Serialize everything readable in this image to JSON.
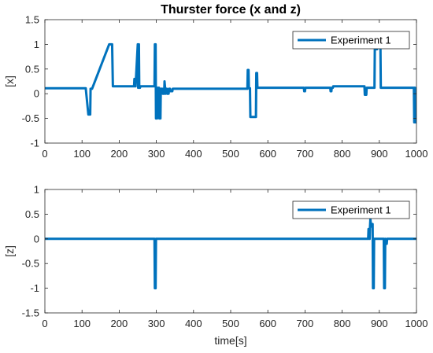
{
  "colors": {
    "series": "#0072BD",
    "axis": "#262626",
    "grid": "#e8e8e8"
  },
  "chart_data": [
    {
      "type": "line",
      "title": "Thurster force (x and z)",
      "xlabel": "",
      "ylabel": "[x]",
      "xlim": [
        0,
        1000
      ],
      "ylim": [
        -1,
        1.5
      ],
      "xticks": [
        0,
        100,
        200,
        300,
        400,
        500,
        600,
        700,
        800,
        900,
        1000
      ],
      "xtick_labels": [
        "0",
        "100",
        "200",
        "300",
        "400",
        "500",
        "600",
        "700",
        "800",
        "900",
        "1000"
      ],
      "yticks": [
        -1,
        -0.5,
        0,
        0.5,
        1,
        1.5
      ],
      "ytick_labels": [
        "-1",
        "-0.5",
        "0",
        "0.5",
        "1",
        "1.5"
      ],
      "legend_position": "top-right",
      "series": [
        {
          "name": "Experiment 1",
          "x": [
            0,
            110,
            117,
            118,
            122,
            123,
            126,
            127,
            172,
            173,
            180,
            181,
            183,
            184,
            240,
            241,
            243,
            244,
            250,
            251,
            253,
            254,
            256,
            257,
            295,
            296,
            298,
            299,
            302,
            303,
            307,
            308,
            311,
            312,
            316,
            317,
            321,
            322,
            325,
            326,
            328,
            329,
            333,
            334,
            337,
            338,
            343,
            344,
            350,
            351,
            545,
            546,
            548,
            549,
            552,
            553,
            568,
            569,
            571,
            572,
            697,
            698,
            700,
            701,
            705,
            706,
            768,
            769,
            771,
            772,
            775,
            776,
            860,
            861,
            865,
            866,
            887,
            888,
            890,
            891,
            894,
            895,
            903,
            904,
            905,
            906,
            920,
            921,
            993,
            994,
            996,
            997,
            1000
          ],
          "y": [
            0.11,
            0.11,
            -0.42,
            -0.42,
            -0.42,
            0.1,
            0.1,
            0.1,
            0.98,
            1.0,
            1.0,
            1.0,
            0.15,
            0.15,
            0.15,
            0.3,
            0.15,
            0.15,
            1.0,
            0.12,
            1.0,
            0.12,
            0.12,
            0.15,
            0.15,
            1.0,
            1.0,
            -0.5,
            -0.5,
            0.12,
            0.12,
            -0.5,
            -0.5,
            0.1,
            0.1,
            0.0,
            0.0,
            0.25,
            0.0,
            0.1,
            0.1,
            0.0,
            0.0,
            0.1,
            0.1,
            0.05,
            0.05,
            0.1,
            0.1,
            0.1,
            0.1,
            0.48,
            0.48,
            0.11,
            0.11,
            -0.47,
            -0.47,
            0.42,
            0.42,
            0.12,
            0.12,
            0.05,
            0.05,
            0.12,
            0.12,
            0.12,
            0.12,
            0.05,
            0.05,
            0.12,
            0.12,
            0.15,
            0.15,
            -0.02,
            -0.02,
            0.12,
            0.12,
            1.0,
            1.0,
            0.9,
            0.9,
            1.0,
            1.0,
            0.12,
            0.12,
            0.12,
            0.12,
            0.12,
            0.12,
            -0.58,
            0.12,
            -0.58,
            -0.58
          ]
        }
      ]
    },
    {
      "type": "line",
      "title": "",
      "xlabel": "time[s]",
      "ylabel": "[z]",
      "xlim": [
        0,
        1000
      ],
      "ylim": [
        -1.5,
        1
      ],
      "xticks": [
        0,
        100,
        200,
        300,
        400,
        500,
        600,
        700,
        800,
        900,
        1000
      ],
      "xtick_labels": [
        "0",
        "100",
        "200",
        "300",
        "400",
        "500",
        "600",
        "700",
        "800",
        "900",
        "1000"
      ],
      "yticks": [
        -1.5,
        -1,
        -0.5,
        0,
        0.5,
        1
      ],
      "ytick_labels": [
        "-1.5",
        "-1",
        "-0.5",
        "0",
        "0.5",
        "1"
      ],
      "legend_position": "top-right",
      "series": [
        {
          "name": "Experiment 1",
          "x": [
            0,
            295,
            296,
            298,
            299,
            870,
            871,
            873,
            874,
            875,
            876,
            878,
            879,
            882,
            883,
            885,
            886,
            892,
            893,
            912,
            913,
            915,
            916,
            917,
            918,
            920,
            921,
            1000
          ],
          "y": [
            0,
            0,
            -1.0,
            -1.0,
            0,
            0,
            0.2,
            0.2,
            0,
            0.25,
            0.4,
            0.25,
            0.3,
            0.3,
            -1.0,
            -1.0,
            0,
            0,
            0,
            0,
            -1.0,
            -1.0,
            0,
            -0.1,
            -0.1,
            -0.1,
            0,
            0
          ]
        }
      ]
    }
  ]
}
